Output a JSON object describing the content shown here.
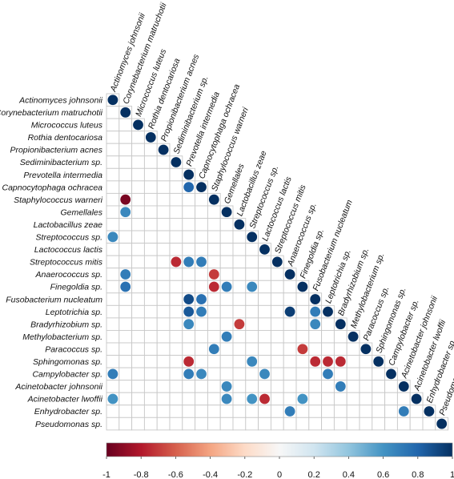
{
  "chart_data": {
    "type": "heatmap",
    "subtype": "correlogram-lower-triangle",
    "title": "",
    "variables": [
      "Actinomyces johnsonii",
      "Corynebacterium matruchotii",
      "Micrococcus luteus",
      "Rothia dentocariosa",
      "Propionibacterium acnes",
      "Sediminibacterium sp.",
      "Prevotella intermedia",
      "Capnocytophaga ochracea",
      "Staphylococcus warneri",
      "Gemellales",
      "Lactobacillus zeae",
      "Streptococcus sp.",
      "Lactococcus lactis",
      "Streptococcus mitis",
      "Anaerococcus sp.",
      "Finegoldia sp.",
      "Fusobacterium nucleatum",
      "Leptotrichia sp.",
      "Bradyrhizobium sp.",
      "Methylobacterium sp.",
      "Paracoccus sp.",
      "Sphingomonas sp.",
      "Campylobacter sp.",
      "Acinetobacter johnsonii",
      "Acinetobacter lwoffii",
      "Enhydrobacter sp.",
      "Pseudomonas sp."
    ],
    "cells": [
      {
        "row": 0,
        "col": 0,
        "value": 1
      },
      {
        "row": 1,
        "col": 1,
        "value": 1
      },
      {
        "row": 2,
        "col": 2,
        "value": 1
      },
      {
        "row": 3,
        "col": 3,
        "value": 1
      },
      {
        "row": 4,
        "col": 4,
        "value": 1
      },
      {
        "row": 5,
        "col": 5,
        "value": 1
      },
      {
        "row": 6,
        "col": 6,
        "value": 1
      },
      {
        "row": 7,
        "col": 6,
        "value": 0.8
      },
      {
        "row": 7,
        "col": 7,
        "value": 1
      },
      {
        "row": 8,
        "col": 1,
        "value": -0.95
      },
      {
        "row": 8,
        "col": 8,
        "value": 1
      },
      {
        "row": 9,
        "col": 1,
        "value": 0.65
      },
      {
        "row": 9,
        "col": 9,
        "value": 1
      },
      {
        "row": 10,
        "col": 10,
        "value": 1
      },
      {
        "row": 11,
        "col": 0,
        "value": 0.65
      },
      {
        "row": 11,
        "col": 11,
        "value": 1
      },
      {
        "row": 12,
        "col": 12,
        "value": 1
      },
      {
        "row": 13,
        "col": 5,
        "value": -0.75
      },
      {
        "row": 13,
        "col": 6,
        "value": 0.7
      },
      {
        "row": 13,
        "col": 7,
        "value": 0.7
      },
      {
        "row": 13,
        "col": 13,
        "value": 1
      },
      {
        "row": 14,
        "col": 1,
        "value": 0.7
      },
      {
        "row": 14,
        "col": 8,
        "value": -0.7
      },
      {
        "row": 14,
        "col": 14,
        "value": 1
      },
      {
        "row": 15,
        "col": 1,
        "value": 0.75
      },
      {
        "row": 15,
        "col": 8,
        "value": -0.75
      },
      {
        "row": 15,
        "col": 9,
        "value": 0.7
      },
      {
        "row": 15,
        "col": 11,
        "value": 0.65
      },
      {
        "row": 15,
        "col": 15,
        "value": 1
      },
      {
        "row": 16,
        "col": 6,
        "value": 0.9
      },
      {
        "row": 16,
        "col": 7,
        "value": 0.75
      },
      {
        "row": 16,
        "col": 16,
        "value": 1
      },
      {
        "row": 17,
        "col": 6,
        "value": 0.85
      },
      {
        "row": 17,
        "col": 7,
        "value": 0.7
      },
      {
        "row": 17,
        "col": 14,
        "value": 0.95
      },
      {
        "row": 17,
        "col": 16,
        "value": 0.7
      },
      {
        "row": 17,
        "col": 17,
        "value": 1
      },
      {
        "row": 18,
        "col": 6,
        "value": 0.65
      },
      {
        "row": 18,
        "col": 10,
        "value": -0.7
      },
      {
        "row": 18,
        "col": 16,
        "value": 0.65
      },
      {
        "row": 18,
        "col": 18,
        "value": 1
      },
      {
        "row": 19,
        "col": 9,
        "value": 0.7
      },
      {
        "row": 19,
        "col": 19,
        "value": 1
      },
      {
        "row": 20,
        "col": 8,
        "value": 0.7
      },
      {
        "row": 20,
        "col": 15,
        "value": -0.7
      },
      {
        "row": 20,
        "col": 20,
        "value": 1
      },
      {
        "row": 21,
        "col": 6,
        "value": -0.75
      },
      {
        "row": 21,
        "col": 11,
        "value": 0.65
      },
      {
        "row": 21,
        "col": 16,
        "value": -0.75
      },
      {
        "row": 21,
        "col": 17,
        "value": -0.75
      },
      {
        "row": 21,
        "col": 18,
        "value": -0.75
      },
      {
        "row": 21,
        "col": 21,
        "value": 1
      },
      {
        "row": 22,
        "col": 0,
        "value": 0.7
      },
      {
        "row": 22,
        "col": 6,
        "value": 0.7
      },
      {
        "row": 22,
        "col": 7,
        "value": 0.65
      },
      {
        "row": 22,
        "col": 12,
        "value": 0.65
      },
      {
        "row": 22,
        "col": 17,
        "value": 0.7
      },
      {
        "row": 22,
        "col": 22,
        "value": 1
      },
      {
        "row": 23,
        "col": 9,
        "value": 0.65
      },
      {
        "row": 23,
        "col": 18,
        "value": 0.7
      },
      {
        "row": 23,
        "col": 23,
        "value": 1
      },
      {
        "row": 24,
        "col": 0,
        "value": 0.6
      },
      {
        "row": 24,
        "col": 9,
        "value": 0.65
      },
      {
        "row": 24,
        "col": 11,
        "value": 0.6
      },
      {
        "row": 24,
        "col": 12,
        "value": -0.75
      },
      {
        "row": 24,
        "col": 15,
        "value": 0.6
      },
      {
        "row": 24,
        "col": 24,
        "value": 1
      },
      {
        "row": 25,
        "col": 14,
        "value": 0.7
      },
      {
        "row": 25,
        "col": 23,
        "value": 0.7
      },
      {
        "row": 25,
        "col": 25,
        "value": 1
      },
      {
        "row": 26,
        "col": 26,
        "value": 1
      }
    ],
    "colorbar": {
      "range": [
        -1,
        1
      ],
      "ticks": [
        "-1",
        "-0.8",
        "-0.6",
        "-0.4",
        "-0.2",
        "0",
        "0.2",
        "0.4",
        "0.6",
        "0.8",
        "1"
      ],
      "colors": {
        "neg_strong": "#67001f",
        "neg": "#b2182b",
        "neg_mid": "#d6604d",
        "neg_light": "#f4a582",
        "neg_pale": "#fddbc7",
        "zero": "#f7f7f7",
        "pos_pale": "#d1e5f0",
        "pos_light": "#92c5de",
        "pos_mid": "#4393c3",
        "pos": "#2166ac",
        "pos_strong": "#053061"
      }
    },
    "grid": true,
    "legend": "bottom"
  }
}
